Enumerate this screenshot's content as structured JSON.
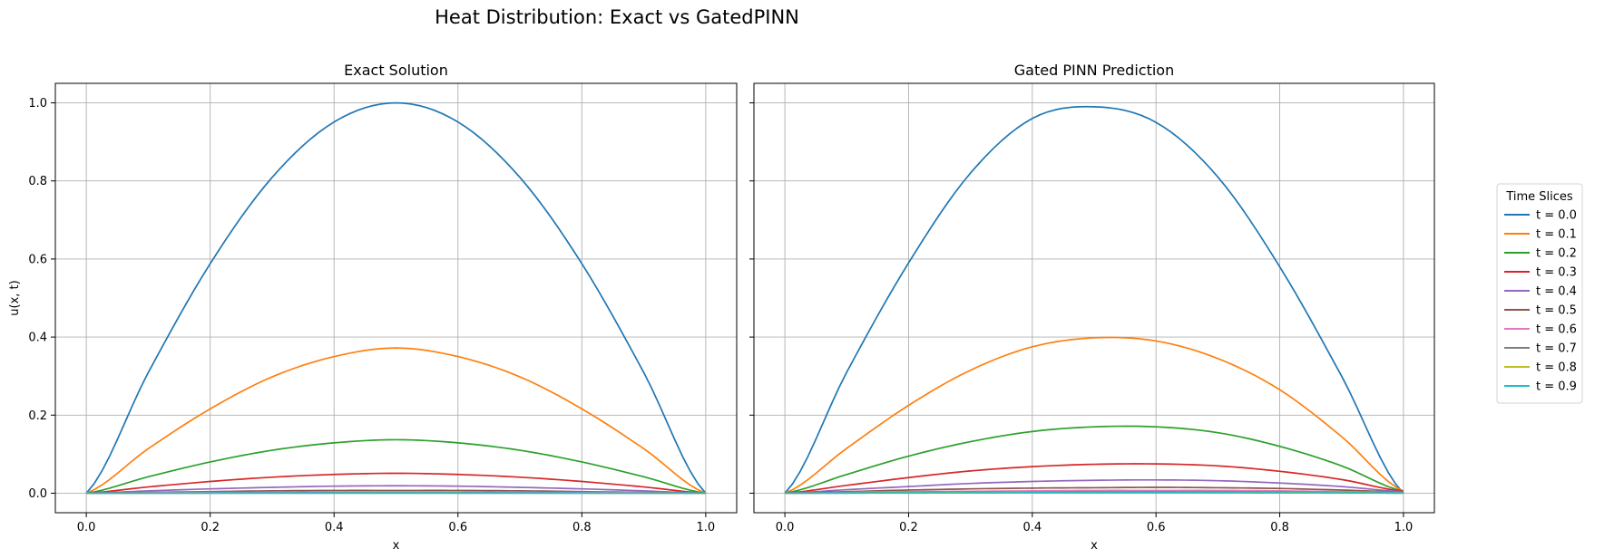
{
  "figure": {
    "suptitle": "Heat Distribution: Exact vs GatedPINN"
  },
  "chart_data": [
    {
      "type": "line",
      "title": "Exact Solution",
      "xlabel": "x",
      "ylabel": "u(x, t)",
      "xlim": [
        -0.05,
        1.05
      ],
      "ylim": [
        -0.05,
        1.05
      ],
      "xticks": [
        0.0,
        0.2,
        0.4,
        0.6,
        0.8,
        1.0
      ],
      "yticks": [
        0.0,
        0.2,
        0.4,
        0.6,
        0.8,
        1.0
      ],
      "xtick_labels": [
        "0.0",
        "0.2",
        "0.4",
        "0.6",
        "0.8",
        "1.0"
      ],
      "ytick_labels": [
        "0.0",
        "0.2",
        "0.4",
        "0.6",
        "0.8",
        "1.0"
      ],
      "grid": true,
      "x": [
        0.0,
        0.1,
        0.2,
        0.3,
        0.4,
        0.5,
        0.6,
        0.7,
        0.8,
        0.9,
        1.0
      ],
      "series": [
        {
          "name": "t = 0.0",
          "color": "#1f77b4",
          "values": [
            0.0,
            0.309,
            0.588,
            0.809,
            0.951,
            1.0,
            0.951,
            0.809,
            0.588,
            0.309,
            0.0
          ]
        },
        {
          "name": "t = 0.1",
          "color": "#ff7f0e",
          "values": [
            0.0,
            0.114,
            0.216,
            0.298,
            0.35,
            0.372,
            0.35,
            0.298,
            0.216,
            0.114,
            0.0
          ]
        },
        {
          "name": "t = 0.2",
          "color": "#2ca02c",
          "values": [
            0.0,
            0.042,
            0.08,
            0.11,
            0.129,
            0.137,
            0.129,
            0.11,
            0.08,
            0.042,
            0.0
          ]
        },
        {
          "name": "t = 0.3",
          "color": "#d62728",
          "values": [
            0.0,
            0.016,
            0.03,
            0.041,
            0.048,
            0.051,
            0.048,
            0.041,
            0.03,
            0.016,
            0.0
          ]
        },
        {
          "name": "t = 0.4",
          "color": "#9467bd",
          "values": [
            0.0,
            0.006,
            0.011,
            0.015,
            0.018,
            0.019,
            0.018,
            0.015,
            0.011,
            0.006,
            0.0
          ]
        },
        {
          "name": "t = 0.5",
          "color": "#8c564b",
          "values": [
            0.0,
            0.002,
            0.004,
            0.006,
            0.007,
            0.007,
            0.007,
            0.006,
            0.004,
            0.002,
            0.0
          ]
        },
        {
          "name": "t = 0.6",
          "color": "#e377c2",
          "values": [
            0.0,
            0.001,
            0.002,
            0.002,
            0.003,
            0.003,
            0.003,
            0.002,
            0.002,
            0.001,
            0.0
          ]
        },
        {
          "name": "t = 0.7",
          "color": "#7f7f7f",
          "values": [
            0.0,
            0.0003,
            0.0006,
            0.0008,
            0.001,
            0.001,
            0.001,
            0.0008,
            0.0006,
            0.0003,
            0.0
          ]
        },
        {
          "name": "t = 0.8",
          "color": "#bcbd22",
          "values": [
            0.0,
            0.0001,
            0.0002,
            0.0003,
            0.0004,
            0.0004,
            0.0004,
            0.0003,
            0.0002,
            0.0001,
            0.0
          ]
        },
        {
          "name": "t = 0.9",
          "color": "#17becf",
          "values": [
            0.0,
            0.0,
            0.0001,
            0.0001,
            0.0001,
            0.0001,
            0.0001,
            0.0001,
            0.0001,
            0.0,
            0.0
          ]
        }
      ]
    },
    {
      "type": "line",
      "title": "Gated PINN Prediction",
      "xlabel": "x",
      "ylabel": "",
      "xlim": [
        -0.05,
        1.05
      ],
      "ylim": [
        -0.05,
        1.05
      ],
      "xticks": [
        0.0,
        0.2,
        0.4,
        0.6,
        0.8,
        1.0
      ],
      "xtick_labels": [
        "0.0",
        "0.2",
        "0.4",
        "0.6",
        "0.8",
        "1.0"
      ],
      "shared_y": true,
      "grid": true,
      "x": [
        0.0,
        0.1,
        0.2,
        0.3,
        0.4,
        0.5,
        0.6,
        0.7,
        0.8,
        0.9,
        1.0
      ],
      "series": [
        {
          "name": "t = 0.0",
          "color": "#1f77b4",
          "values": [
            0.0,
            0.31,
            0.59,
            0.82,
            0.96,
            0.99,
            0.95,
            0.81,
            0.58,
            0.3,
            0.0
          ]
        },
        {
          "name": "t = 0.1",
          "color": "#ff7f0e",
          "values": [
            0.0,
            0.115,
            0.225,
            0.315,
            0.375,
            0.398,
            0.39,
            0.345,
            0.265,
            0.145,
            0.005
          ]
        },
        {
          "name": "t = 0.2",
          "color": "#2ca02c",
          "values": [
            0.0,
            0.048,
            0.095,
            0.132,
            0.158,
            0.17,
            0.17,
            0.155,
            0.12,
            0.07,
            0.005
          ]
        },
        {
          "name": "t = 0.3",
          "color": "#d62728",
          "values": [
            0.0,
            0.02,
            0.04,
            0.057,
            0.068,
            0.074,
            0.075,
            0.07,
            0.056,
            0.035,
            0.005
          ]
        },
        {
          "name": "t = 0.4",
          "color": "#9467bd",
          "values": [
            0.0,
            0.009,
            0.017,
            0.025,
            0.03,
            0.033,
            0.034,
            0.032,
            0.026,
            0.017,
            0.004
          ]
        },
        {
          "name": "t = 0.5",
          "color": "#8c564b",
          "values": [
            0.0,
            0.004,
            0.008,
            0.011,
            0.013,
            0.014,
            0.015,
            0.014,
            0.012,
            0.008,
            0.003
          ]
        },
        {
          "name": "t = 0.6",
          "color": "#e377c2",
          "values": [
            0.0,
            0.002,
            0.004,
            0.005,
            0.006,
            0.007,
            0.007,
            0.007,
            0.006,
            0.004,
            0.002
          ]
        },
        {
          "name": "t = 0.7",
          "color": "#7f7f7f",
          "values": [
            0.0,
            0.001,
            0.002,
            0.003,
            0.003,
            0.004,
            0.004,
            0.004,
            0.003,
            0.002,
            0.001
          ]
        },
        {
          "name": "t = 0.8",
          "color": "#bcbd22",
          "values": [
            0.0,
            0.0005,
            0.001,
            0.0015,
            0.002,
            0.002,
            0.002,
            0.002,
            0.0015,
            0.001,
            0.0005
          ]
        },
        {
          "name": "t = 0.9",
          "color": "#17becf",
          "values": [
            0.0,
            0.0002,
            0.0005,
            0.0007,
            0.001,
            0.001,
            0.001,
            0.001,
            0.0007,
            0.0005,
            0.0002
          ]
        }
      ]
    }
  ],
  "legend": {
    "title": "Time Slices",
    "placement": "right",
    "entries": [
      "t = 0.0",
      "t = 0.1",
      "t = 0.2",
      "t = 0.3",
      "t = 0.4",
      "t = 0.5",
      "t = 0.6",
      "t = 0.7",
      "t = 0.8",
      "t = 0.9"
    ]
  }
}
